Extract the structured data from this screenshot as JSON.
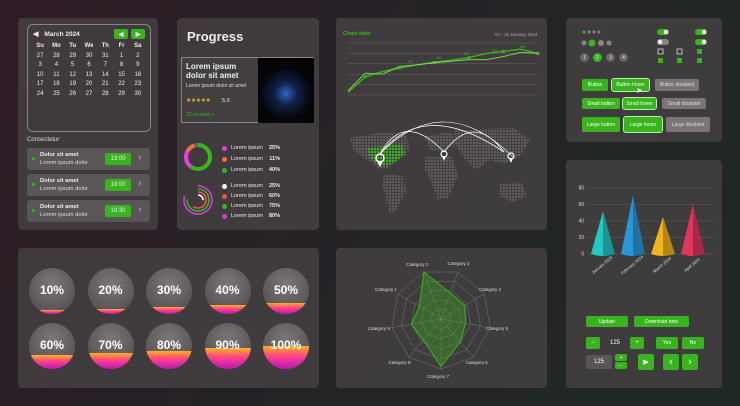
{
  "calendar": {
    "month": "March 2024",
    "days": [
      "Su",
      "Mo",
      "Tu",
      "We",
      "Th",
      "Fr",
      "Sa"
    ],
    "weeks": [
      [
        "27",
        "28",
        "29",
        "30",
        "31",
        "1",
        "2"
      ],
      [
        "3",
        "4",
        "5",
        "6",
        "7",
        "8",
        "9"
      ],
      [
        "10",
        "11",
        "12",
        "13",
        "14",
        "15",
        "16"
      ],
      [
        "17",
        "18",
        "19",
        "20",
        "21",
        "22",
        "23"
      ],
      [
        "24",
        "25",
        "26",
        "27",
        "28",
        "29",
        "30"
      ]
    ]
  },
  "events": {
    "heading": "Consectetur",
    "items": [
      {
        "title": "Dolor sit amet",
        "sub": "Lorem ipsum dolor",
        "time": "13:00"
      },
      {
        "title": "Dolor sit amet",
        "sub": "Lorem ipsum dolor",
        "time": "18:00"
      },
      {
        "title": "Dolor sit amet",
        "sub": "Lorem ipsum dolor",
        "time": "18:30"
      }
    ]
  },
  "progress": {
    "title": "Progress",
    "card": {
      "heading": "Lorem ipsum dolor sit amet",
      "sub": "Lorem ipsum dolor sit amet",
      "stars": "★★★★★",
      "rating": "5.0",
      "reviews": "22 reviews >"
    },
    "ring1": [
      {
        "label": "Lorem ipsum",
        "value": "25%",
        "color": "#e040e0"
      },
      {
        "label": "Lorem ipsum",
        "value": "11%",
        "color": "#ff6a3a"
      },
      {
        "label": "Lorem ipsum",
        "value": "40%",
        "color": "#3ab41e"
      }
    ],
    "ring2": [
      {
        "label": "Lorem ipsum",
        "value": "25%",
        "color": "#ffffff"
      },
      {
        "label": "Lorem ipsum",
        "value": "60%",
        "color": "#ff5040"
      },
      {
        "label": "Lorem ipsum",
        "value": "75%",
        "color": "#3ab41e"
      },
      {
        "label": "Lorem ipsum",
        "value": "80%",
        "color": "#d040d8"
      }
    ]
  },
  "line_chart": {
    "title": "Chart data",
    "date": "04 - 16 January 2024"
  },
  "chart_data": [
    {
      "type": "line",
      "series": [
        {
          "values": [
            5,
            35,
            45,
            52,
            58,
            63,
            67,
            72,
            80,
            84,
            88,
            80
          ]
        },
        {
          "values": [
            8,
            42,
            40,
            55,
            58,
            62,
            65,
            68,
            68,
            74,
            82,
            80
          ]
        }
      ],
      "point_labels": [
        "312",
        "452",
        "513",
        "512",
        "536"
      ]
    },
    {
      "type": "radar",
      "categories": [
        "Category 2",
        "Category 3",
        "Category 4",
        "Category 5",
        "Category 6",
        "Category 7",
        "Category 8",
        "Category 9",
        "Category 1"
      ],
      "values": [
        1.0,
        0.55,
        0.55,
        0.5,
        0.6,
        0.95,
        0.55,
        0.6,
        0.5
      ]
    },
    {
      "type": "bar",
      "categories": [
        "January 2024",
        "February 2024",
        "March 2024",
        "April 2024"
      ],
      "values": [
        52,
        71,
        45,
        60
      ],
      "yticks": [
        "0",
        "20",
        "40",
        "60",
        "80"
      ],
      "colors": [
        "#25c7c2",
        "#2a97d8",
        "#f2b31b",
        "#e2365f"
      ]
    }
  ],
  "percent_circles": [
    {
      "label": "10%",
      "level": 0.1
    },
    {
      "label": "20%",
      "level": 0.2
    },
    {
      "label": "30%",
      "level": 0.3
    },
    {
      "label": "40%",
      "level": 0.4
    },
    {
      "label": "50%",
      "level": 0.5
    },
    {
      "label": "60%",
      "level": 0.6
    },
    {
      "label": "70%",
      "level": 0.7
    },
    {
      "label": "80%",
      "level": 0.8
    },
    {
      "label": "90%",
      "level": 0.9
    },
    {
      "label": "100%",
      "level": 1.0
    }
  ],
  "controls": {
    "steps": [
      "1",
      "2",
      "3",
      "4"
    ],
    "buttons": [
      {
        "label": "Button",
        "state": "normal"
      },
      {
        "label": "Button hover",
        "state": "hover"
      },
      {
        "label": "Button disabled",
        "state": "disabled"
      },
      {
        "label": "Small button",
        "state": "normal"
      },
      {
        "label": "Small hover",
        "state": "hover"
      },
      {
        "label": "Small disabled",
        "state": "disabled"
      },
      {
        "label": "Large button",
        "state": "normal"
      },
      {
        "label": "Large hover",
        "state": "hover"
      },
      {
        "label": "Large disabled",
        "state": "disabled"
      }
    ]
  },
  "bottom_controls": {
    "update": "Update",
    "download": "Download now",
    "stepper_minus": "−",
    "stepper_value": "125",
    "stepper_plus": "+",
    "yes": "Yes",
    "no": "No",
    "spin_value": "125",
    "spin_up": "+",
    "spin_down": "−",
    "play": "▶",
    "prev": "‹",
    "next": "›"
  }
}
